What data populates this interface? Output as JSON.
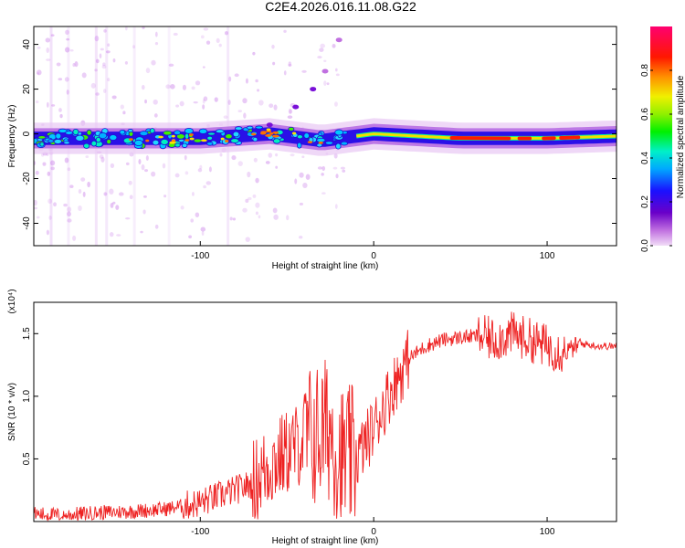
{
  "title": "C2E4.2026.016.11.08.G22",
  "chart_data": [
    {
      "type": "heatmap",
      "name": "spectrogram",
      "title": "C2E4.2026.016.11.08.G22",
      "xlabel": "Height of straight line (km)",
      "ylabel": "Frequency (Hz)",
      "xlim": [
        -196,
        140
      ],
      "ylim": [
        -50,
        48
      ],
      "xticks": [
        -100,
        0,
        100
      ],
      "yticks": [
        -40,
        -20,
        0,
        20,
        40
      ],
      "colorbar": {
        "label": "Normalized spectral amplitude",
        "range": [
          0,
          1
        ],
        "ticks": [
          "0.0",
          "0.2",
          "0.4",
          "0.6",
          "0.8"
        ]
      },
      "ridge": [
        {
          "x": -196,
          "f": -2
        },
        {
          "x": -150,
          "f": -2
        },
        {
          "x": -100,
          "f": -2
        },
        {
          "x": -60,
          "f": 0
        },
        {
          "x": -30,
          "f": -3
        },
        {
          "x": 0,
          "f": 0
        },
        {
          "x": 50,
          "f": -2
        },
        {
          "x": 100,
          "f": -2
        },
        {
          "x": 140,
          "f": -1
        }
      ],
      "ridge_notes": "dominant ridge near 0 Hz; scattered energy -196 to -20 km; coherent tone -10 to 140 km with peak amplitude 0 to 120 km",
      "rising_branch": [
        {
          "x": -60,
          "f": 4
        },
        {
          "x": -45,
          "f": 12
        },
        {
          "x": -35,
          "f": 20
        },
        {
          "x": -28,
          "f": 28
        },
        {
          "x": -20,
          "f": 42
        }
      ]
    },
    {
      "type": "line",
      "name": "snr",
      "xlabel": "Height of straight line (km)",
      "ylabel": "SNR (10 * v/v)",
      "scale_label": "(x10⁴)",
      "xlim": [
        -196,
        140
      ],
      "ylim": [
        0,
        1.75
      ],
      "xticks": [
        -100,
        0,
        100
      ],
      "yticks": [
        "0.5",
        "1.0",
        "1.5"
      ],
      "color": "#ee2222",
      "series": [
        {
          "name": "SNR",
          "x": [
            -196,
            -180,
            -160,
            -140,
            -120,
            -100,
            -90,
            -80,
            -70,
            -60,
            -50,
            -40,
            -30,
            -25,
            -20,
            -10,
            0,
            10,
            20,
            30,
            40,
            50,
            60,
            70,
            80,
            90,
            100,
            110,
            120,
            130,
            140
          ],
          "values": [
            0.06,
            0.05,
            0.07,
            0.08,
            0.1,
            0.15,
            0.2,
            0.25,
            0.3,
            0.45,
            0.55,
            0.65,
            0.7,
            0.75,
            0.5,
            0.5,
            0.75,
            1.05,
            1.3,
            1.4,
            1.45,
            1.47,
            1.48,
            1.45,
            1.5,
            1.45,
            1.4,
            1.35,
            1.42,
            1.4,
            1.4
          ]
        }
      ]
    }
  ]
}
